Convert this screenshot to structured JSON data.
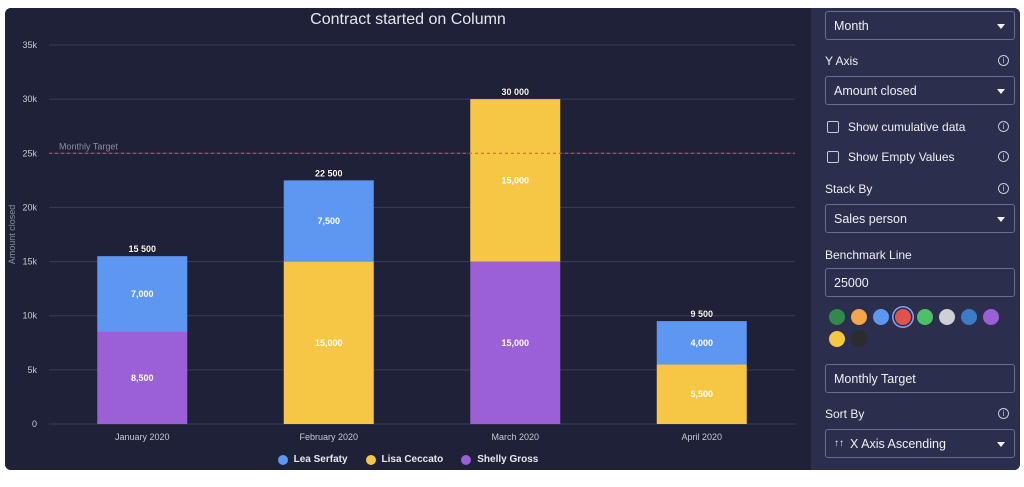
{
  "chart_data": {
    "type": "bar",
    "stacked": true,
    "title": "Contract started on Column",
    "xlabel": "",
    "ylabel": "Amount closed",
    "ylim": [
      0,
      35000
    ],
    "yticks": [
      0,
      5000,
      10000,
      15000,
      20000,
      25000,
      30000,
      35000
    ],
    "ytick_labels": [
      "0",
      "5k",
      "10k",
      "15k",
      "20k",
      "25k",
      "30k",
      "35k"
    ],
    "categories": [
      "January 2020",
      "February 2020",
      "March 2020",
      "April 2020"
    ],
    "series": [
      {
        "name": "Shelly Gross",
        "color": "#9b5fd6",
        "values": [
          8500,
          0,
          15000,
          0
        ],
        "labels": [
          "8,500",
          "",
          "15,000",
          ""
        ]
      },
      {
        "name": "Lisa Ceccato",
        "color": "#f6c744",
        "values": [
          0,
          15000,
          15000,
          5500
        ],
        "labels": [
          "",
          "15,000",
          "15,000",
          "5,500"
        ]
      },
      {
        "name": "Lea Serfaty",
        "color": "#5e97f2",
        "values": [
          7000,
          7500,
          0,
          4000
        ],
        "labels": [
          "7,000",
          "7,500",
          "",
          "4,000"
        ]
      }
    ],
    "totals": [
      15500,
      22500,
      30000,
      9500
    ],
    "total_labels": [
      "15 500",
      "22 500",
      "30 000",
      "9 500"
    ],
    "benchmark": {
      "value": 25000,
      "label": "Monthly Target",
      "color": "#e0524a"
    },
    "legend": [
      {
        "name": "Lea Serfaty",
        "color": "#5e97f2"
      },
      {
        "name": "Lisa Ceccato",
        "color": "#f6c744"
      },
      {
        "name": "Shelly Gross",
        "color": "#9b5fd6"
      }
    ],
    "grid": true
  },
  "panel": {
    "x_axis_group": "Month",
    "y_axis_label": "Y Axis",
    "y_axis_value": "Amount closed",
    "cumulative_label": "Show cumulative data",
    "empty_values_label": "Show Empty Values",
    "stack_by_label": "Stack By",
    "stack_by_value": "Sales person",
    "benchmark_label": "Benchmark Line",
    "benchmark_value": "25000",
    "benchmark_name": "Monthly Target",
    "sort_by_label": "Sort By",
    "sort_by_value": "X Axis Ascending",
    "info_glyph": "i",
    "sort_glyph": "↑↑",
    "swatches": [
      "#2f8a4b",
      "#f3a64a",
      "#5e97f2",
      "#e0524a",
      "#4ec06c",
      "#cfd0d6",
      "#3a7cc6",
      "#9b5fd6",
      "#f6c744",
      "#2c2c2c"
    ],
    "selected_swatch_index": 3
  }
}
